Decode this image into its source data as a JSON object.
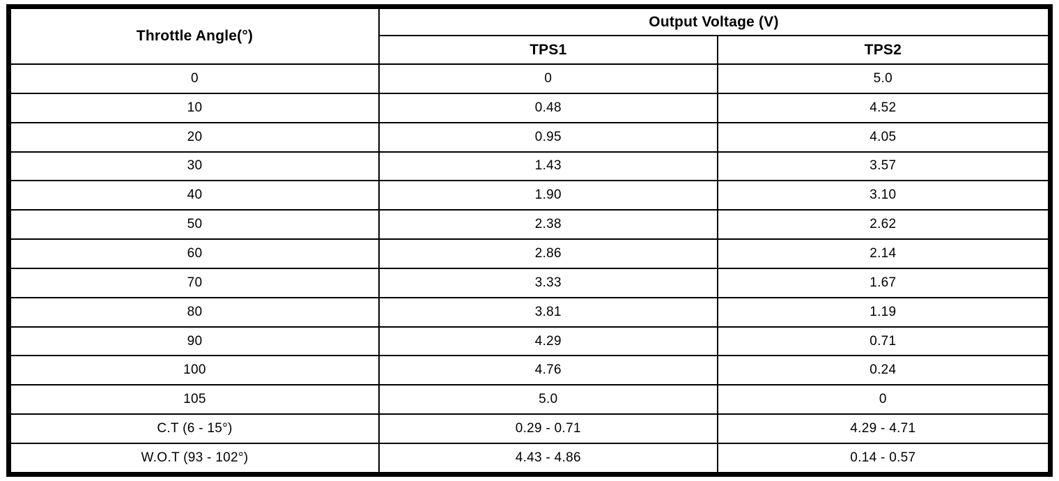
{
  "colors": {
    "border": "#000000",
    "background": "#ffffff",
    "text": "#000000"
  },
  "table": {
    "angle_header": "Throttle Angle(°)",
    "voltage_group_header": "Output Voltage (V)",
    "tps1_header": "TPS1",
    "tps2_header": "TPS2",
    "rows": [
      {
        "angle": "0",
        "tps1": "0",
        "tps2": "5.0"
      },
      {
        "angle": "10",
        "tps1": "0.48",
        "tps2": "4.52"
      },
      {
        "angle": "20",
        "tps1": "0.95",
        "tps2": "4.05"
      },
      {
        "angle": "30",
        "tps1": "1.43",
        "tps2": "3.57"
      },
      {
        "angle": "40",
        "tps1": "1.90",
        "tps2": "3.10"
      },
      {
        "angle": "50",
        "tps1": "2.38",
        "tps2": "2.62"
      },
      {
        "angle": "60",
        "tps1": "2.86",
        "tps2": "2.14"
      },
      {
        "angle": "70",
        "tps1": "3.33",
        "tps2": "1.67"
      },
      {
        "angle": "80",
        "tps1": "3.81",
        "tps2": "1.19"
      },
      {
        "angle": "90",
        "tps1": "4.29",
        "tps2": "0.71"
      },
      {
        "angle": "100",
        "tps1": "4.76",
        "tps2": "0.24"
      },
      {
        "angle": "105",
        "tps1": "5.0",
        "tps2": "0"
      },
      {
        "angle": "C.T (6 - 15°)",
        "tps1": "0.29 - 0.71",
        "tps2": "4.29 - 4.71"
      },
      {
        "angle": "W.O.T (93 - 102°)",
        "tps1": "4.43 - 4.86",
        "tps2": "0.14 - 0.57"
      }
    ]
  },
  "chart_data": {
    "type": "table",
    "title": "Output Voltage (V)",
    "columns": [
      "Throttle Angle(°)",
      "TPS1",
      "TPS2"
    ],
    "x": [
      0,
      10,
      20,
      30,
      40,
      50,
      60,
      70,
      80,
      90,
      100,
      105
    ],
    "series": [
      {
        "name": "TPS1",
        "values": [
          0,
          0.48,
          0.95,
          1.43,
          1.9,
          2.38,
          2.86,
          3.33,
          3.81,
          4.29,
          4.76,
          5.0
        ]
      },
      {
        "name": "TPS2",
        "values": [
          5.0,
          4.52,
          4.05,
          3.57,
          3.1,
          2.62,
          2.14,
          1.67,
          1.19,
          0.71,
          0.24,
          0
        ]
      }
    ],
    "special_rows": [
      {
        "label": "C.T (6 - 15°)",
        "tps1_range": "0.29 - 0.71",
        "tps2_range": "4.29 - 4.71"
      },
      {
        "label": "W.O.T (93 - 102°)",
        "tps1_range": "4.43 - 4.86",
        "tps2_range": "0.14 - 0.57"
      }
    ]
  }
}
